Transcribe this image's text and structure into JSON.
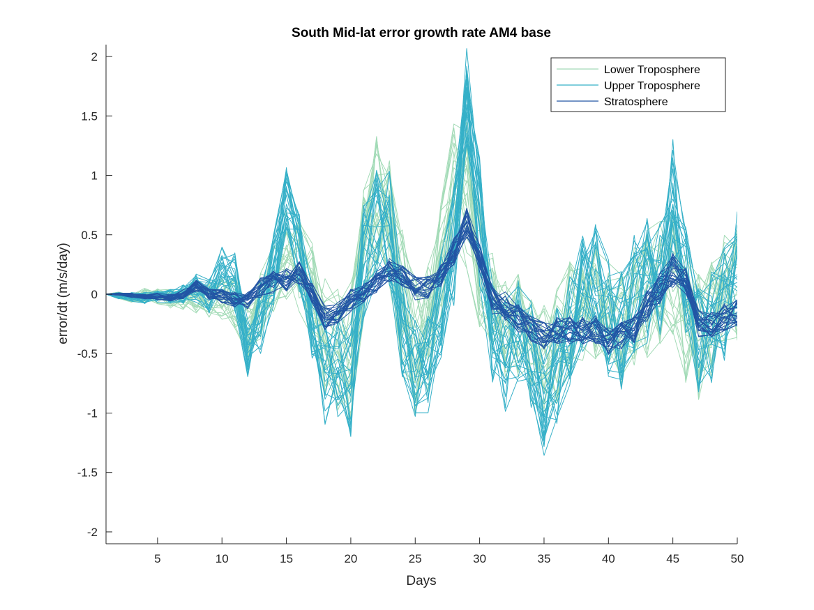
{
  "chart_data": {
    "type": "line",
    "title": "South Mid-lat error growth rate AM4 base",
    "xlabel": "Days",
    "ylabel": "error/dt (m/s/day)",
    "xlim": [
      1,
      50
    ],
    "ylim": [
      -2.1,
      2.1
    ],
    "xticks": [
      "5",
      "10",
      "15",
      "20",
      "25",
      "30",
      "35",
      "40",
      "45",
      "50"
    ],
    "yticks": [
      "-2",
      "-1.5",
      "-1",
      "-0.5",
      "0",
      "0.5",
      "1",
      "1.5",
      "2"
    ],
    "grid": false,
    "legend_position": "top-right",
    "colors": {
      "lower": "#a3dbb7",
      "upper": "#35b0c8",
      "strat": "#2255a4"
    },
    "series": [
      {
        "name": "Lower Troposphere",
        "key": "lower",
        "mean": [
          0,
          -0.01,
          -0.02,
          -0.01,
          -0.02,
          -0.04,
          -0.05,
          -0.04,
          -0.05,
          -0.02,
          -0.06,
          -0.3,
          -0.1,
          0.2,
          0.35,
          0.25,
          0,
          -0.35,
          -0.45,
          -0.5,
          0.3,
          0.8,
          0.7,
          -0.05,
          -0.45,
          -0.3,
          0.25,
          0.9,
          0.85,
          0.2,
          -0.1,
          -0.3,
          -0.25,
          -0.4,
          -0.5,
          -0.45,
          -0.2,
          -0.1,
          -0.05,
          -0.2,
          -0.3,
          -0.1,
          0,
          0.1,
          0.15,
          -0.2,
          -0.35,
          -0.2,
          0,
          0.1
        ],
        "amplitude": [
          0.02,
          0.03,
          0.05,
          0.06,
          0.07,
          0.08,
          0.1,
          0.12,
          0.15,
          0.2,
          0.25,
          0.3,
          0.3,
          0.35,
          0.4,
          0.4,
          0.45,
          0.5,
          0.6,
          0.6,
          0.6,
          0.65,
          0.65,
          0.65,
          0.6,
          0.55,
          0.55,
          0.6,
          0.65,
          0.6,
          0.5,
          0.45,
          0.45,
          0.5,
          0.5,
          0.5,
          0.5,
          0.5,
          0.5,
          0.5,
          0.5,
          0.5,
          0.55,
          0.55,
          0.55,
          0.55,
          0.55,
          0.5,
          0.5,
          0.5
        ]
      },
      {
        "name": "Upper Troposphere",
        "key": "upper",
        "mean": [
          0,
          -0.01,
          -0.02,
          -0.03,
          -0.02,
          -0.02,
          0,
          0.05,
          -0.02,
          0.2,
          0.1,
          -0.45,
          -0.2,
          0.2,
          0.8,
          0.35,
          -0.2,
          -0.6,
          -0.6,
          -0.7,
          0.3,
          0.6,
          0.55,
          -0.2,
          -0.6,
          -0.55,
          -0.1,
          0.4,
          1.7,
          0.6,
          -0.4,
          -0.5,
          -0.3,
          -0.5,
          -0.9,
          -0.6,
          -0.3,
          0,
          0.1,
          -0.2,
          -0.3,
          0,
          0.1,
          0.1,
          0.75,
          0.1,
          -0.35,
          -0.3,
          -0.1,
          0.2
        ],
        "amplitude": [
          0.02,
          0.03,
          0.04,
          0.05,
          0.05,
          0.06,
          0.08,
          0.12,
          0.15,
          0.2,
          0.25,
          0.25,
          0.3,
          0.3,
          0.3,
          0.35,
          0.4,
          0.5,
          0.5,
          0.5,
          0.5,
          0.5,
          0.5,
          0.5,
          0.45,
          0.45,
          0.45,
          0.5,
          0.45,
          0.55,
          0.5,
          0.5,
          0.45,
          0.5,
          0.5,
          0.5,
          0.5,
          0.5,
          0.5,
          0.5,
          0.5,
          0.5,
          0.55,
          0.55,
          0.6,
          0.5,
          0.5,
          0.5,
          0.5,
          0.5
        ]
      },
      {
        "name": "Stratosphere",
        "key": "strat",
        "mean": [
          0,
          0,
          -0.01,
          -0.02,
          -0.02,
          -0.03,
          0,
          0.07,
          0,
          -0.02,
          -0.05,
          -0.06,
          0.05,
          0.1,
          0.12,
          0.18,
          0,
          -0.2,
          -0.15,
          -0.05,
          0,
          0.1,
          0.2,
          0.15,
          0.05,
          0.05,
          0.15,
          0.35,
          0.6,
          0.3,
          -0.05,
          -0.1,
          -0.2,
          -0.3,
          -0.35,
          -0.3,
          -0.3,
          -0.3,
          -0.3,
          -0.4,
          -0.35,
          -0.3,
          -0.1,
          0.05,
          0.2,
          0.1,
          -0.25,
          -0.25,
          -0.2,
          -0.15
        ],
        "amplitude": [
          0.01,
          0.01,
          0.02,
          0.02,
          0.03,
          0.03,
          0.04,
          0.05,
          0.05,
          0.06,
          0.07,
          0.08,
          0.09,
          0.1,
          0.1,
          0.1,
          0.1,
          0.1,
          0.1,
          0.1,
          0.1,
          0.1,
          0.1,
          0.1,
          0.1,
          0.1,
          0.1,
          0.12,
          0.13,
          0.12,
          0.12,
          0.12,
          0.12,
          0.12,
          0.12,
          0.12,
          0.12,
          0.12,
          0.12,
          0.12,
          0.12,
          0.12,
          0.13,
          0.13,
          0.15,
          0.13,
          0.12,
          0.12,
          0.12,
          0.12
        ]
      }
    ],
    "members_per_series": 24
  }
}
